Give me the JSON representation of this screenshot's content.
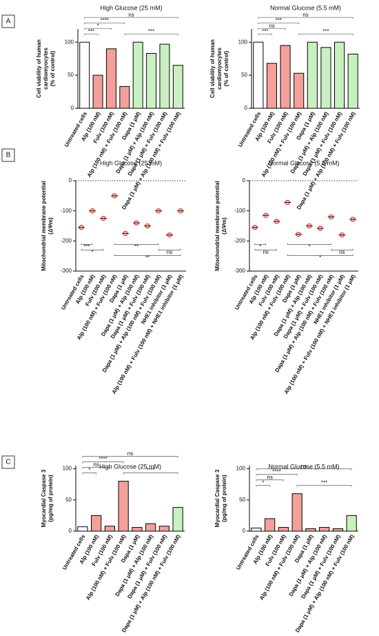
{
  "panels": [
    "A",
    "B",
    "C"
  ],
  "chart_data": [
    {
      "type": "bar",
      "title": "High Glucose (25 mM)",
      "ylabel": [
        "Cell viability of human",
        "cardiomyocytes",
        "(% of control)"
      ],
      "categories": [
        "Untreated cells",
        "Alp (100 nM)",
        "Fulv (100 nM)",
        "Alp (100 nM) + Fulv (100 nM)",
        "Dapa (1 μM)",
        "Dapa (1 μM) + Alp (100 nM)",
        "Dapa (1 μM) + Fulv (100 nM)",
        "Dapa (1 μM) + Alp (100 nM) + Fulv (100 nM)"
      ],
      "values": [
        100,
        50,
        90,
        33,
        100,
        83,
        97,
        65
      ],
      "colors": [
        "#ffffff",
        "#f4a09a",
        "#f4a09a",
        "#f4a09a",
        "#c8f0c0",
        "#c8f0c0",
        "#c8f0c0",
        "#c8f0c0"
      ],
      "ylim": [
        0,
        120
      ],
      "yticks": [
        0,
        50,
        100
      ],
      "brackets": [
        {
          "text": "***",
          "from": 0,
          "to": 1
        },
        {
          "text": "*",
          "from": 0,
          "to": 2
        },
        {
          "text": "****",
          "from": 0,
          "to": 3
        },
        {
          "text": "ns",
          "from": 0,
          "to": 7
        },
        {
          "text": "***",
          "from": 3,
          "to": 7
        }
      ]
    },
    {
      "type": "bar",
      "title": "Normal Glucose (5.5 mM)",
      "ylabel": [
        "Cell viability of human",
        "cardiomyocytes",
        "(% of control)"
      ],
      "categories": [
        "Untreated cells",
        "Alp (100 nM)",
        "Fulv (100 nM)",
        "Alp (100 nM) + Fulv (100 nM)",
        "Dapa (1 μM)",
        "Dapa (1 μM) + Alp (100 nM)",
        "Dapa (1 μM) + Fulv (100 nM)",
        "Dapa (1 μM) + Alp (100 nM) + Fulv (100 nM)"
      ],
      "values": [
        100,
        68,
        95,
        53,
        100,
        92,
        100,
        82
      ],
      "colors": [
        "#ffffff",
        "#f4a09a",
        "#f4a09a",
        "#f4a09a",
        "#c8f0c0",
        "#c8f0c0",
        "#c8f0c0",
        "#c8f0c0"
      ],
      "ylim": [
        0,
        120
      ],
      "yticks": [
        0,
        50,
        100
      ],
      "brackets": [
        {
          "text": "***",
          "from": 0,
          "to": 1
        },
        {
          "text": "ns",
          "from": 0,
          "to": 2
        },
        {
          "text": "***",
          "from": 0,
          "to": 3
        },
        {
          "text": "ns",
          "from": 0,
          "to": 7
        },
        {
          "text": "***",
          "from": 3,
          "to": 7
        }
      ]
    },
    {
      "type": "dot",
      "title": "High Glucose (25 mM)",
      "ylabel": [
        "Mitochondrial membrane potential",
        "(ΔΨm)"
      ],
      "categories": [
        "Untreated cells",
        "Alp (100 nM)",
        "Fulv (100 nM)",
        "Alp (100 nM) + Fulv (100 nM)",
        "Dapa (1 μM)",
        "Dapa (1 μM) + Alp (100 nM)",
        "Dapa (1 μM) + Fulv (100 nM)",
        "Dapa (1 μM) + Alp (100 nM) + Fulv (100 nM)",
        "NHE1 inhibitor (1 μM)",
        "Alp (100 nM) + Fulv (100 nM) + NHE1 inhibitor (1 μM)"
      ],
      "values": [
        -155,
        -100,
        -125,
        -50,
        -175,
        -140,
        -150,
        -100,
        -180,
        -100
      ],
      "color": "#e0302a",
      "ylim": [
        -300,
        0
      ],
      "yticks": [
        0,
        -100,
        -200,
        -300
      ],
      "brackets": [
        {
          "text": "***",
          "from": 0,
          "to": 1
        },
        {
          "text": "*",
          "from": 0,
          "to": 2
        },
        {
          "text": "**",
          "from": 3,
          "to": 7
        },
        {
          "text": "ns",
          "from": 7,
          "to": 9
        },
        {
          "text": "**",
          "from": 3,
          "to": 9
        }
      ]
    },
    {
      "type": "dot",
      "title": "Normal Glucose (5.5 mM)",
      "ylabel": [
        "Mitochondrial membrane potential",
        "(ΔΨm)"
      ],
      "categories": [
        "Untreated cells",
        "Alp (100 nM)",
        "Fulv (100 nM)",
        "Alp (100 nM) + Fulv (100 nM)",
        "Dapa (1 μM)",
        "Dapa (1 μM) + Alp (100 nM)",
        "Dapa (1 μM) + Fulv (100 nM)",
        "Dapa (1 μM) + Alp (100 nM) + Fulv (100 nM)",
        "NHE1 inhibitor (1 μM)",
        "Alp (100 nM) + Fulv (100 nM) + NHE1 inhibitor (1 μM)"
      ],
      "values": [
        -155,
        -115,
        -135,
        -72,
        -178,
        -150,
        -158,
        -120,
        -180,
        -128
      ],
      "color": "#e0302a",
      "ylim": [
        -300,
        0
      ],
      "yticks": [
        0,
        -100,
        -200,
        -300
      ],
      "brackets": [
        {
          "text": "*",
          "from": 0,
          "to": 1
        },
        {
          "text": "ns",
          "from": 0,
          "to": 2
        },
        {
          "text": "*",
          "from": 3,
          "to": 7
        },
        {
          "text": "ns",
          "from": 7,
          "to": 9
        },
        {
          "text": "*",
          "from": 3,
          "to": 9
        }
      ]
    },
    {
      "type": "bar",
      "title": "High Glucose (25 mM)",
      "ylabel": [
        "Myocardial Caspase 3",
        "(pg/mg of protein)"
      ],
      "categories": [
        "Untreated cells",
        "Alp (100 nM)",
        "Fulv (100 nM)",
        "Alp (100 nM) + Fulv (100 nM)",
        "Dapa (1 μM)",
        "Dapa (1 μM) + Alp (100 nM)",
        "Dapa (1 μM) + Fulv (100 nM)",
        "Dapa (1 μM) + Alp (100 nM) + Fulv (100 nM)"
      ],
      "values": [
        7,
        25,
        8,
        80,
        6,
        12,
        8,
        38
      ],
      "colors": [
        "#ffffff",
        "#f4a09a",
        "#f4a09a",
        "#f4a09a",
        "#f4a09a",
        "#f4a09a",
        "#f4a09a",
        "#c8f0c0"
      ],
      "ylim": [
        0,
        105
      ],
      "yticks": [
        0,
        50,
        100
      ],
      "brackets": [
        {
          "text": "*",
          "from": 0,
          "to": 1
        },
        {
          "text": "ns",
          "from": 0,
          "to": 2
        },
        {
          "text": "****",
          "from": 0,
          "to": 3
        },
        {
          "text": "ns",
          "from": 0,
          "to": 7
        },
        {
          "text": "****",
          "from": 3,
          "to": 7
        }
      ]
    },
    {
      "type": "bar",
      "title": "Normal Glucose (5.5 mM)",
      "ylabel": [
        "Myocardial Caspase 3",
        "(pg/mg of protein)"
      ],
      "categories": [
        "Untreated cells",
        "Alp (100 nM)",
        "Fulv (100 nM)",
        "Alp (100 nM) + Fulv (100 nM)",
        "Dapa (1 μM)",
        "Dapa (1 μM) + Alp (100 nM)",
        "Dapa (1 μM) + Fulv (100 nM)",
        "Dapa (1 μM) + Alp (100 nM) + Fulv (100 nM)"
      ],
      "values": [
        5,
        20,
        6,
        60,
        4,
        6,
        4,
        25
      ],
      "colors": [
        "#ffffff",
        "#f4a09a",
        "#f4a09a",
        "#f4a09a",
        "#f4a09a",
        "#f4a09a",
        "#f4a09a",
        "#c8f0c0"
      ],
      "ylim": [
        0,
        105
      ],
      "yticks": [
        0,
        50,
        100
      ],
      "brackets": [
        {
          "text": "*",
          "from": 0,
          "to": 1
        },
        {
          "text": "ns",
          "from": 0,
          "to": 2
        },
        {
          "text": "****",
          "from": 0,
          "to": 3
        },
        {
          "text": "ns",
          "from": 0,
          "to": 7
        },
        {
          "text": "***",
          "from": 3,
          "to": 7
        }
      ]
    }
  ]
}
